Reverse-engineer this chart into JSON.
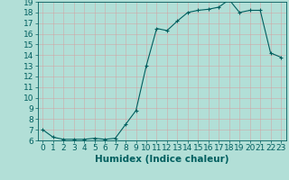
{
  "x": [
    0,
    1,
    2,
    3,
    4,
    5,
    6,
    7,
    8,
    9,
    10,
    11,
    12,
    13,
    14,
    15,
    16,
    17,
    18,
    19,
    20,
    21,
    22,
    23
  ],
  "y": [
    7.0,
    6.3,
    6.1,
    6.1,
    6.1,
    6.2,
    6.1,
    6.2,
    7.5,
    8.8,
    13.0,
    16.5,
    16.3,
    17.2,
    18.0,
    18.2,
    18.3,
    18.5,
    19.2,
    18.0,
    18.2,
    18.2,
    14.2,
    13.8
  ],
  "xlabel": "Humidex (Indice chaleur)",
  "bg_color": "#b2dfd7",
  "grid_color": "#c8ebe5",
  "line_color": "#005f5f",
  "ylim_min": 6,
  "ylim_max": 19,
  "yticks": [
    6,
    7,
    8,
    9,
    10,
    11,
    12,
    13,
    14,
    15,
    16,
    17,
    18,
    19
  ],
  "xticks": [
    0,
    1,
    2,
    3,
    4,
    5,
    6,
    7,
    8,
    9,
    10,
    11,
    12,
    13,
    14,
    15,
    16,
    17,
    18,
    19,
    20,
    21,
    22,
    23
  ],
  "xlabel_fontsize": 7.5,
  "tick_fontsize": 6.5
}
